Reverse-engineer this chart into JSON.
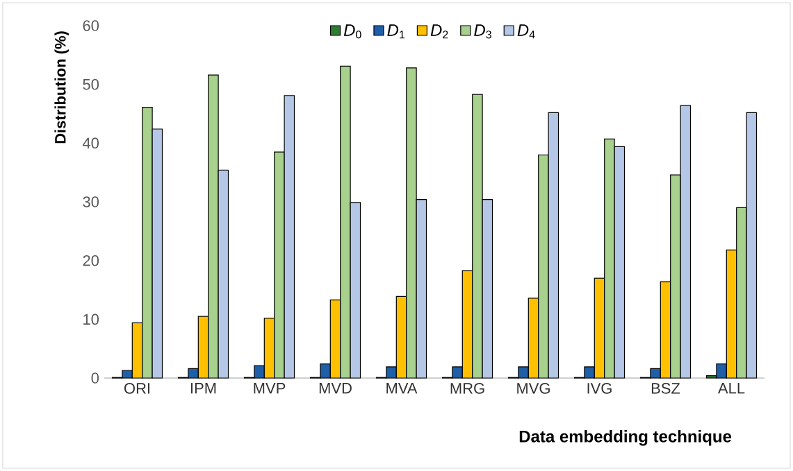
{
  "chart_data": {
    "type": "bar",
    "xlabel": "Data embedding technique",
    "ylabel": "Distribution (%)",
    "categories": [
      "ORI",
      "IPM",
      "MVP",
      "MVD",
      "MVA",
      "MRG",
      "MVG",
      "IVG",
      "BSZ",
      "ALL"
    ],
    "series": [
      {
        "name": "*D*$_{0}$",
        "color": "#2e7d32",
        "values": [
          0.1,
          0.1,
          0.1,
          0.1,
          0.1,
          0.1,
          0.1,
          0.1,
          0.1,
          0.4
        ]
      },
      {
        "name": "*D*$_{1}$",
        "color": "#1f5fa8",
        "values": [
          1.3,
          1.6,
          2.1,
          2.4,
          1.9,
          1.9,
          1.9,
          1.9,
          1.6,
          2.4
        ]
      },
      {
        "name": "*D*$_{2}$",
        "color": "#ffc000",
        "values": [
          9.4,
          10.5,
          10.2,
          13.3,
          13.9,
          18.3,
          13.6,
          17.0,
          16.4,
          21.8
        ]
      },
      {
        "name": "*D*$_{3}$",
        "color": "#a9d18e",
        "values": [
          46.1,
          51.6,
          38.5,
          53.1,
          52.8,
          48.3,
          38.0,
          40.7,
          34.6,
          29.0
        ]
      },
      {
        "name": "*D*$_{4}$",
        "color": "#b4c7e7",
        "values": [
          42.4,
          35.4,
          48.1,
          29.9,
          30.4,
          30.4,
          45.2,
          39.4,
          46.4,
          45.2
        ]
      }
    ],
    "ylim": [
      0,
      60
    ],
    "yticks": [
      0,
      10,
      20,
      30,
      40,
      50,
      60
    ],
    "legend": "top"
  }
}
